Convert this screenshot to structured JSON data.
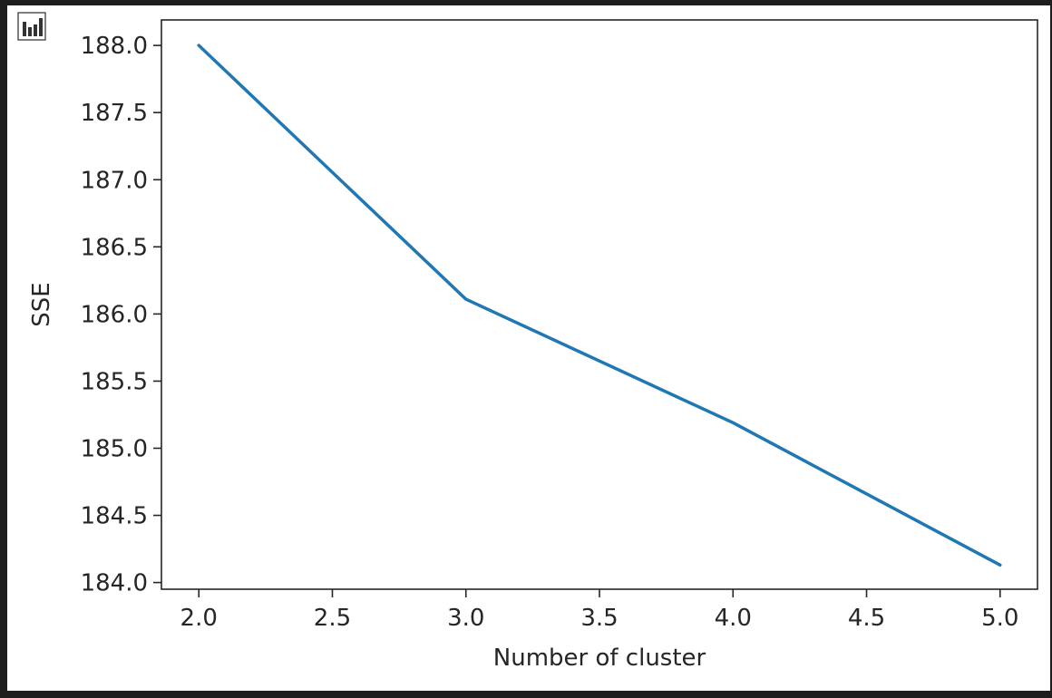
{
  "toolbar": {
    "icon": "bar-chart-icon"
  },
  "chart_data": {
    "type": "line",
    "x": [
      2.0,
      3.0,
      4.0,
      5.0
    ],
    "series": [
      {
        "values": [
          188.0,
          186.11,
          185.19,
          184.13
        ]
      }
    ],
    "xlabel": "Number of cluster",
    "ylabel": "SSE",
    "xlim": [
      1.86,
      5.14
    ],
    "ylim": [
      183.95,
      188.19
    ],
    "xticks": [
      2.0,
      2.5,
      3.0,
      3.5,
      4.0,
      4.5,
      5.0
    ],
    "xtick_labels": [
      "2.0",
      "2.5",
      "3.0",
      "3.5",
      "4.0",
      "4.5",
      "5.0"
    ],
    "yticks": [
      184.0,
      184.5,
      185.0,
      185.5,
      186.0,
      186.5,
      187.0,
      187.5,
      188.0
    ],
    "ytick_labels": [
      "184.0",
      "184.5",
      "185.0",
      "185.5",
      "186.0",
      "186.5",
      "187.0",
      "187.5",
      "188.0"
    ],
    "grid": false,
    "line_color": "#1f77b4"
  }
}
